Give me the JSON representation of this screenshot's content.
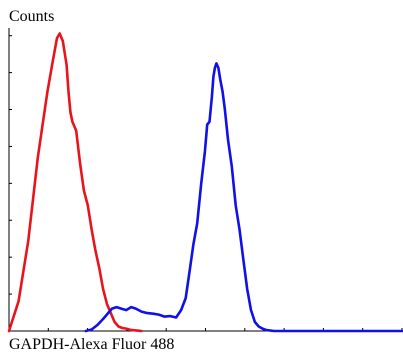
{
  "chart_data": {
    "type": "line",
    "title": "",
    "ylabel": "Counts",
    "xlabel": "GAPDH-Alexa Fluor 488",
    "xlim": [
      0,
      1023
    ],
    "ylim": [
      0,
      100
    ],
    "grid": false,
    "legend": "none",
    "series": [
      {
        "color": "#e8141c",
        "x": [
          0,
          25,
          50,
          75,
          100,
          115,
          125,
          132,
          140,
          145,
          150,
          155,
          160,
          165,
          175,
          185,
          195,
          205,
          215,
          225,
          235,
          245,
          255,
          265,
          275,
          285,
          295,
          305,
          315,
          330,
          345
        ],
        "y": [
          0,
          10,
          30,
          58,
          80,
          91,
          98,
          99.5,
          97,
          93,
          89,
          80,
          73,
          70,
          67,
          56,
          47,
          42,
          34,
          27,
          21,
          14,
          9,
          6,
          3,
          1.5,
          1,
          0.8,
          0.4,
          0.2,
          0
        ]
      },
      {
        "color": "#1010e8",
        "x": [
          200,
          215,
          230,
          245,
          258,
          268,
          280,
          292,
          305,
          318,
          330,
          345,
          360,
          375,
          390,
          405,
          420,
          435,
          448,
          460,
          470,
          480,
          490,
          500,
          510,
          516,
          522,
          528,
          532,
          536,
          540,
          545,
          550,
          556,
          562,
          570,
          580,
          590,
          600,
          610,
          620,
          630,
          640,
          650,
          660,
          670,
          690,
          720,
          1023
        ],
        "y": [
          0,
          0.5,
          2,
          4,
          6,
          7.5,
          8,
          7.5,
          7,
          8,
          7.5,
          6.5,
          6,
          5.8,
          5.5,
          4.8,
          5,
          4.5,
          7,
          11,
          20,
          29,
          36,
          49,
          60,
          69,
          70,
          78,
          85,
          88,
          89.5,
          88,
          84,
          80,
          74,
          64,
          55,
          42,
          34,
          24,
          14,
          7,
          3,
          1.5,
          0.8,
          0.3,
          0,
          0,
          0
        ]
      }
    ]
  }
}
